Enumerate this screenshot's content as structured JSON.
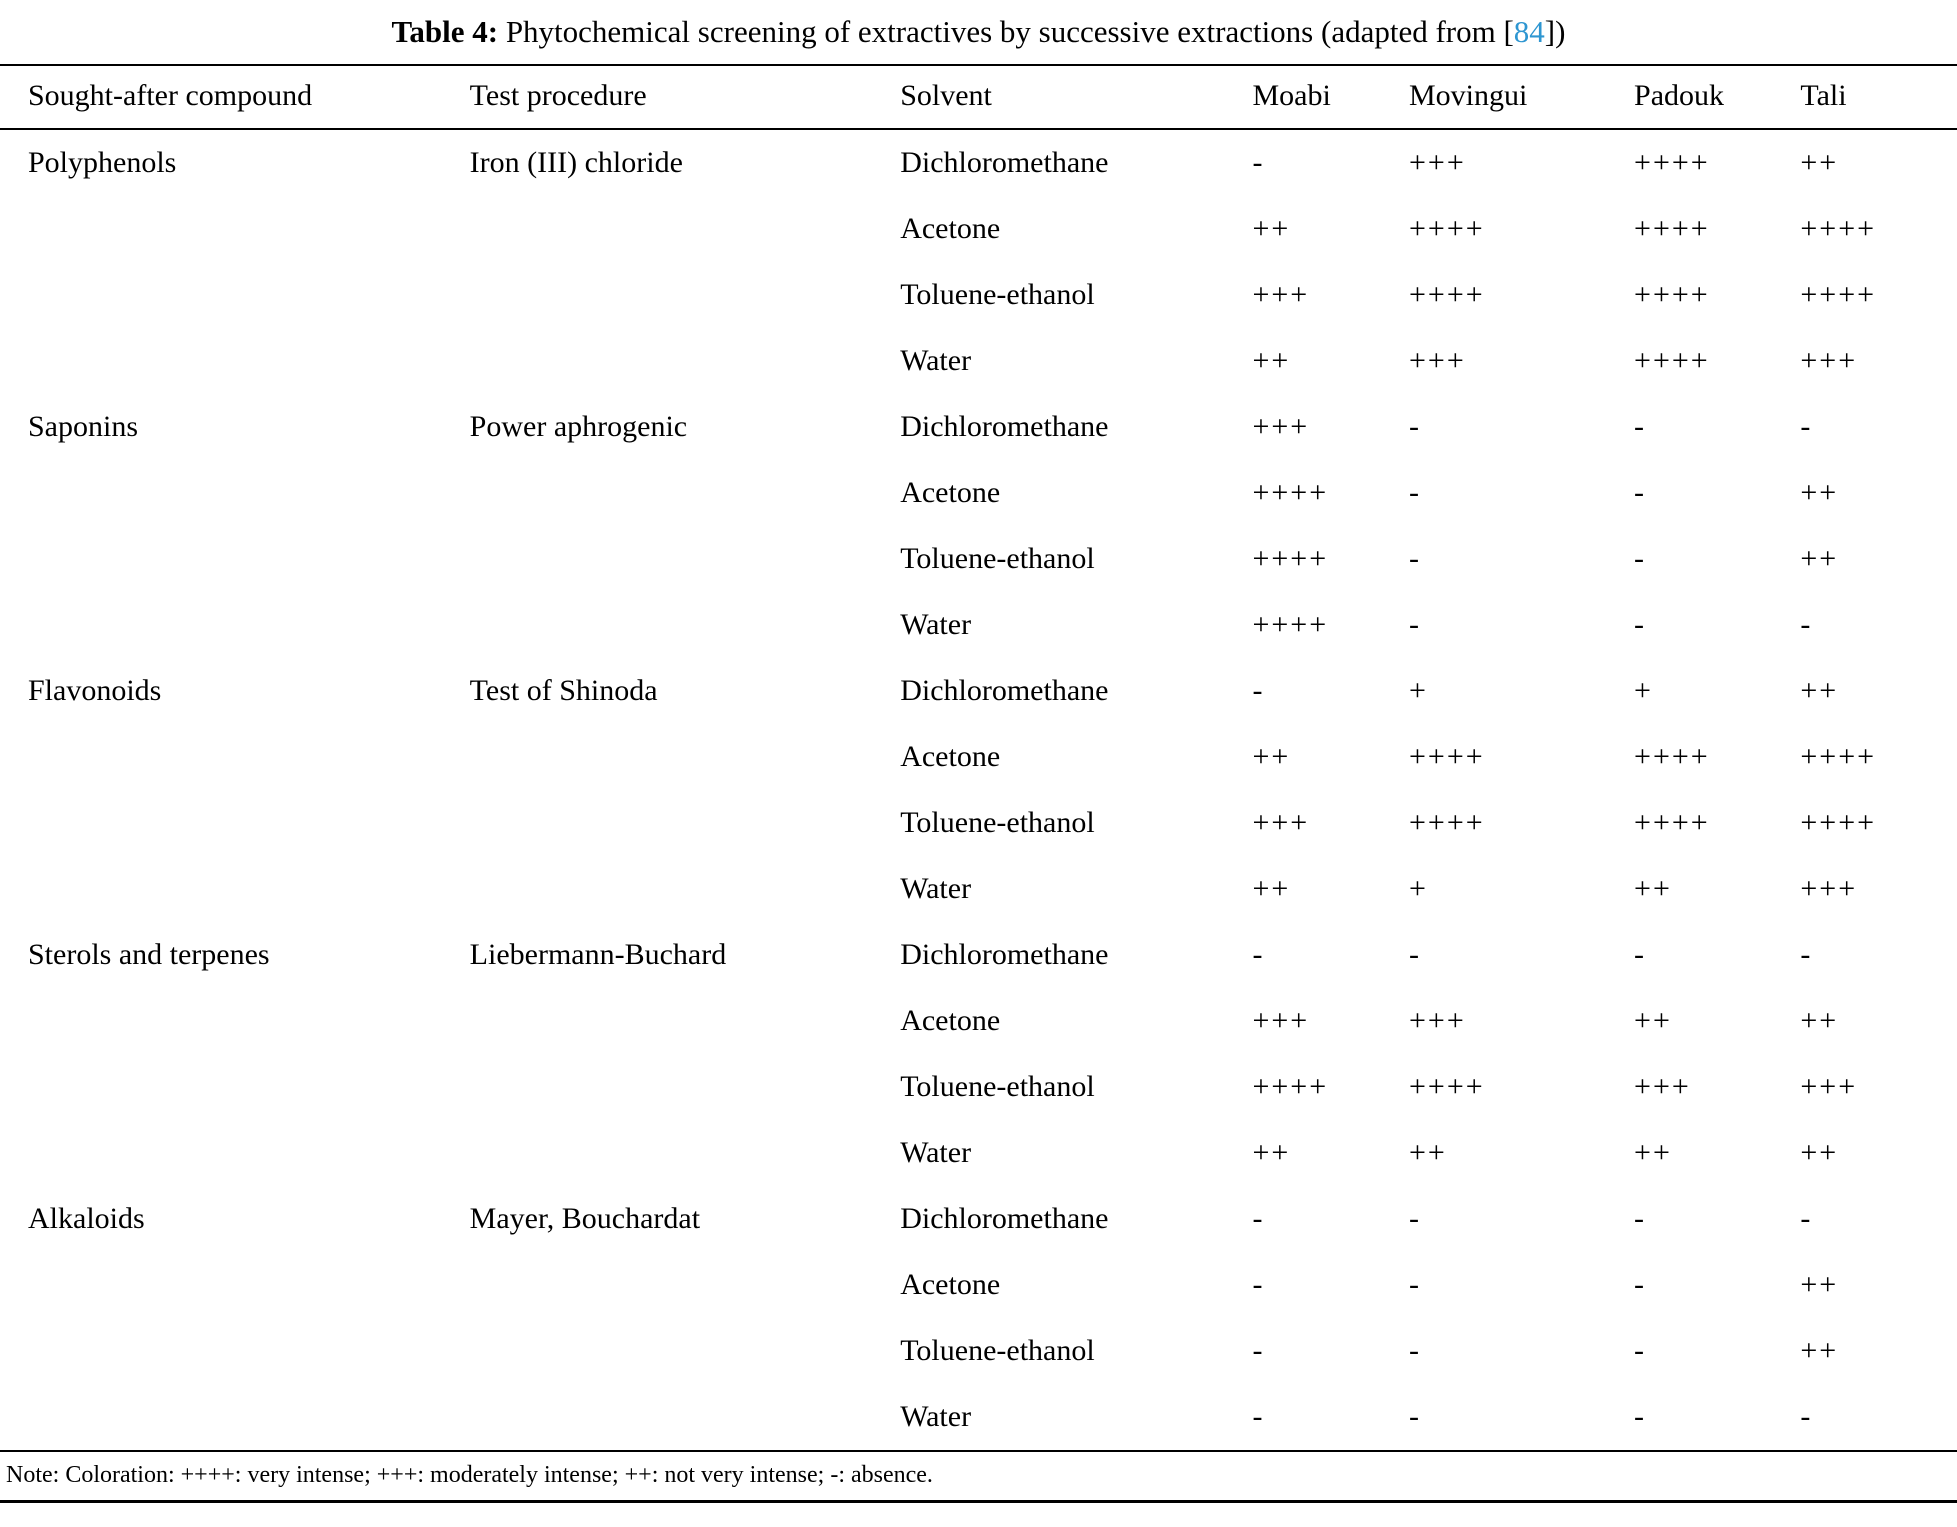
{
  "title": {
    "label": "Table 4:",
    "text": " Phytochemical screening of extractives by successive extractions (adapted from [",
    "ref": "84",
    "suffix": "])"
  },
  "table": {
    "columns": [
      "Sought-after compound",
      "Test procedure",
      "Solvent",
      "Moabi",
      "Movingui",
      "Padouk",
      "Tali"
    ],
    "rows": [
      {
        "compound": "Polyphenols",
        "procedure": "Iron (III) chloride",
        "solvent": "Dichloromethane",
        "results": [
          "-",
          "+++",
          "++++",
          "++"
        ]
      },
      {
        "compound": "",
        "procedure": "",
        "solvent": "Acetone",
        "results": [
          "++",
          "++++",
          "++++",
          "++++"
        ]
      },
      {
        "compound": "",
        "procedure": "",
        "solvent": "Toluene-ethanol",
        "results": [
          "+++",
          "++++",
          "++++",
          "++++"
        ]
      },
      {
        "compound": "",
        "procedure": "",
        "solvent": "Water",
        "results": [
          "++",
          "+++",
          "++++",
          "+++"
        ]
      },
      {
        "compound": "Saponins",
        "procedure": "Power aphrogenic",
        "solvent": "Dichloromethane",
        "results": [
          "+++",
          "-",
          "-",
          "-"
        ]
      },
      {
        "compound": "",
        "procedure": "",
        "solvent": "Acetone",
        "results": [
          "++++",
          "-",
          "-",
          "++"
        ]
      },
      {
        "compound": "",
        "procedure": "",
        "solvent": "Toluene-ethanol",
        "results": [
          "++++",
          "-",
          "-",
          "++"
        ]
      },
      {
        "compound": "",
        "procedure": "",
        "solvent": "Water",
        "results": [
          "++++",
          "-",
          "-",
          "-"
        ]
      },
      {
        "compound": "Flavonoids",
        "procedure": "Test of Shinoda",
        "solvent": "Dichloromethane",
        "results": [
          "-",
          "+",
          "+",
          "++"
        ]
      },
      {
        "compound": "",
        "procedure": "",
        "solvent": "Acetone",
        "results": [
          "++",
          "++++",
          "++++",
          "++++"
        ]
      },
      {
        "compound": "",
        "procedure": "",
        "solvent": "Toluene-ethanol",
        "results": [
          "+++",
          "++++",
          "++++",
          "++++"
        ]
      },
      {
        "compound": "",
        "procedure": "",
        "solvent": "Water",
        "results": [
          "++",
          "+",
          "++",
          "+++"
        ]
      },
      {
        "compound": "Sterols and terpenes",
        "procedure": "Liebermann-Buchard",
        "solvent": "Dichloromethane",
        "results": [
          "-",
          "-",
          "-",
          "-"
        ]
      },
      {
        "compound": "",
        "procedure": "",
        "solvent": "Acetone",
        "results": [
          "+++",
          "+++",
          "++",
          "++"
        ]
      },
      {
        "compound": "",
        "procedure": "",
        "solvent": "Toluene-ethanol",
        "results": [
          "++++",
          "++++",
          "+++",
          "+++"
        ]
      },
      {
        "compound": "",
        "procedure": "",
        "solvent": "Water",
        "results": [
          "++",
          "++",
          "++",
          "++"
        ]
      },
      {
        "compound": "Alkaloids",
        "procedure": "Mayer, Bouchardat",
        "solvent": "Dichloromethane",
        "results": [
          "-",
          "-",
          "-",
          "-"
        ]
      },
      {
        "compound": "",
        "procedure": "",
        "solvent": "Acetone",
        "results": [
          "-",
          "-",
          "-",
          "++"
        ]
      },
      {
        "compound": "",
        "procedure": "",
        "solvent": "Toluene-ethanol",
        "results": [
          "-",
          "-",
          "-",
          "++"
        ]
      },
      {
        "compound": "",
        "procedure": "",
        "solvent": "Water",
        "results": [
          "-",
          "-",
          "-",
          "-"
        ]
      }
    ]
  },
  "note": "Note: Coloration: ++++: very intense; +++: moderately intense; ++: not very intense; -: absence.",
  "colors": {
    "link": "#2e96d1",
    "text": "#000000",
    "background": "#ffffff",
    "rule": "#000000"
  }
}
